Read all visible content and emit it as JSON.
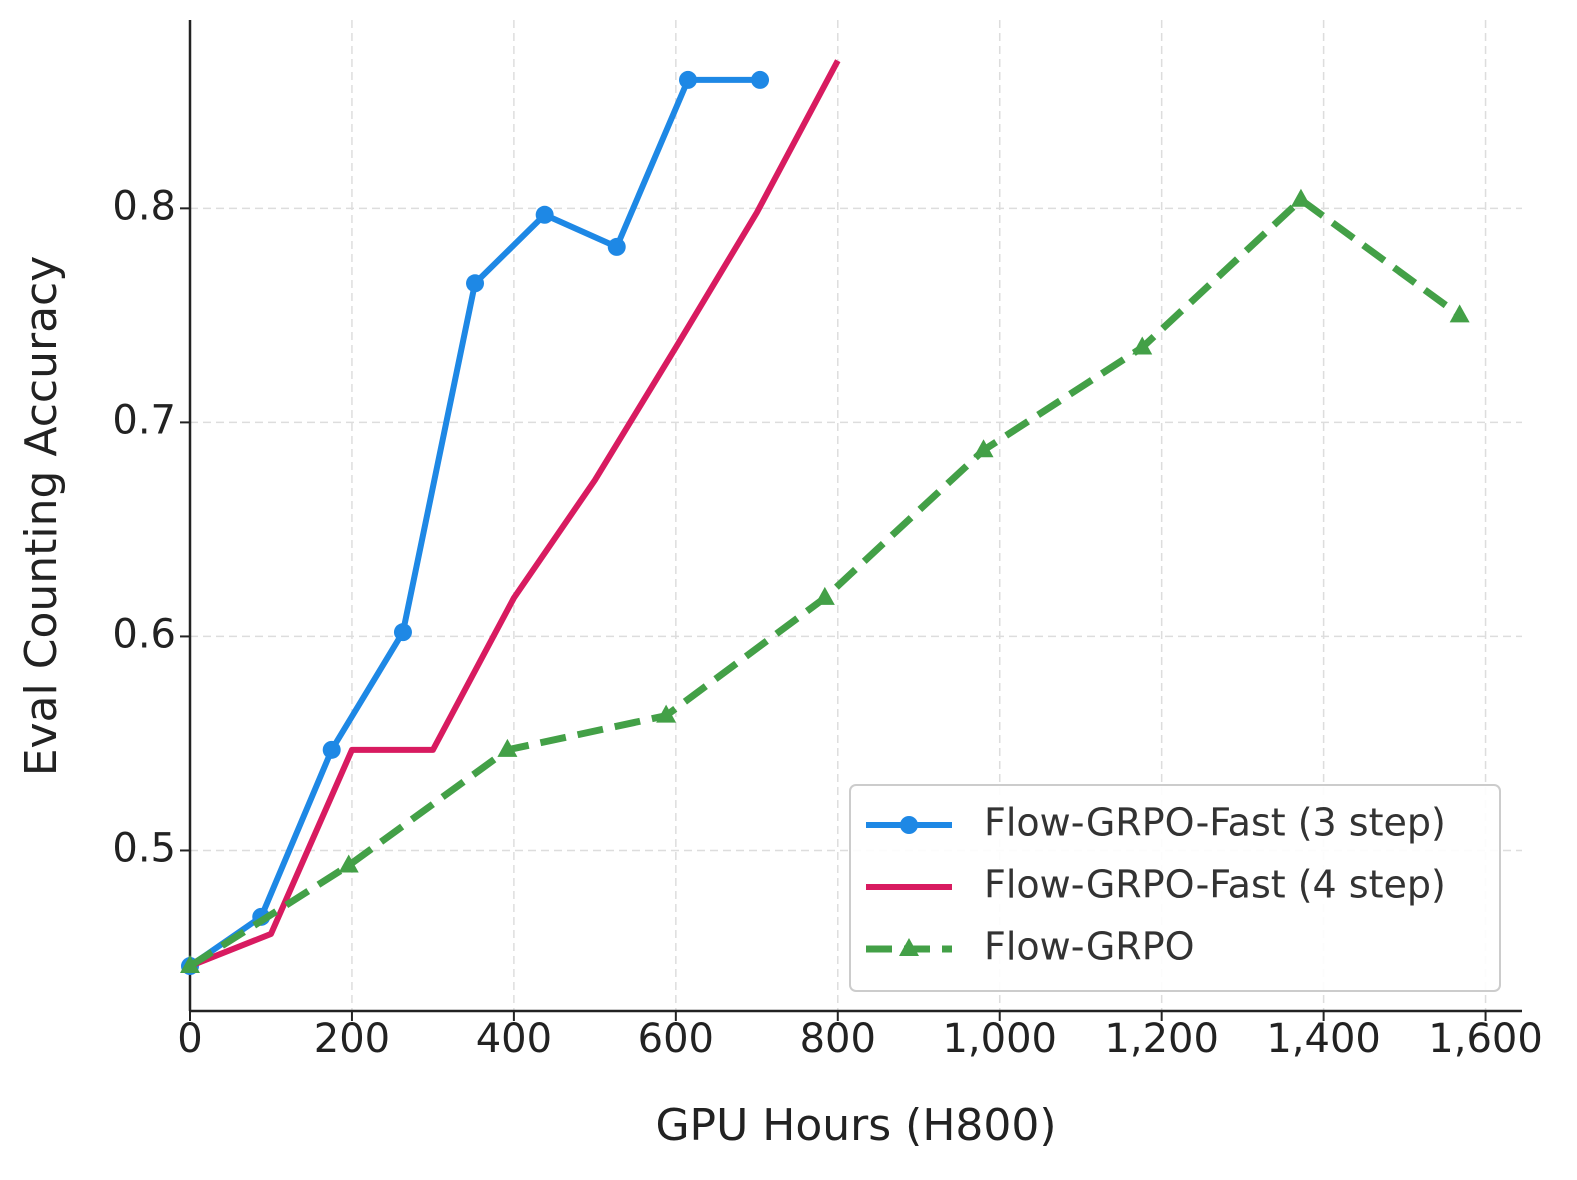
{
  "chart_data": {
    "type": "line",
    "xlabel": "GPU Hours (H800)",
    "ylabel": "Eval Counting Accuracy",
    "xlim": [
      0,
      1645
    ],
    "ylim": [
      0.425,
      0.888
    ],
    "xticks": [
      0,
      200,
      400,
      600,
      800,
      {
        "value": 1000,
        "label": "1,000"
      },
      {
        "value": 1200,
        "label": "1,200"
      },
      {
        "value": 1400,
        "label": "1,400"
      },
      {
        "value": 1600,
        "label": "1,600"
      }
    ],
    "yticks": [
      0.5,
      0.6,
      0.7,
      0.8
    ],
    "grid": true,
    "legend": "lower right",
    "series": [
      {
        "name": "Flow-GRPO-Fast (3 step)",
        "color": "#1e88e5",
        "marker": "circle",
        "dash": false,
        "x": [
          0,
          88,
          175,
          263,
          352,
          438,
          527,
          615,
          704
        ],
        "values": [
          0.446,
          0.469,
          0.547,
          0.602,
          0.765,
          0.797,
          0.782,
          0.86,
          0.86
        ]
      },
      {
        "name": "Flow-GRPO-Fast (4 step)",
        "color": "#d81b60",
        "marker": "none",
        "dash": false,
        "x": [
          0,
          100,
          200,
          300,
          400,
          500,
          600,
          700,
          800
        ],
        "values": [
          0.446,
          0.461,
          0.547,
          0.547,
          0.618,
          0.673,
          0.735,
          0.798,
          0.869
        ]
      },
      {
        "name": "Flow-GRPO",
        "color": "#43a047",
        "marker": "triangle",
        "dash": true,
        "x": [
          0,
          196,
          392,
          588,
          784,
          980,
          1176,
          1372,
          1568
        ],
        "values": [
          0.446,
          0.493,
          0.547,
          0.563,
          0.618,
          0.687,
          0.735,
          0.804,
          0.75
        ]
      }
    ]
  }
}
